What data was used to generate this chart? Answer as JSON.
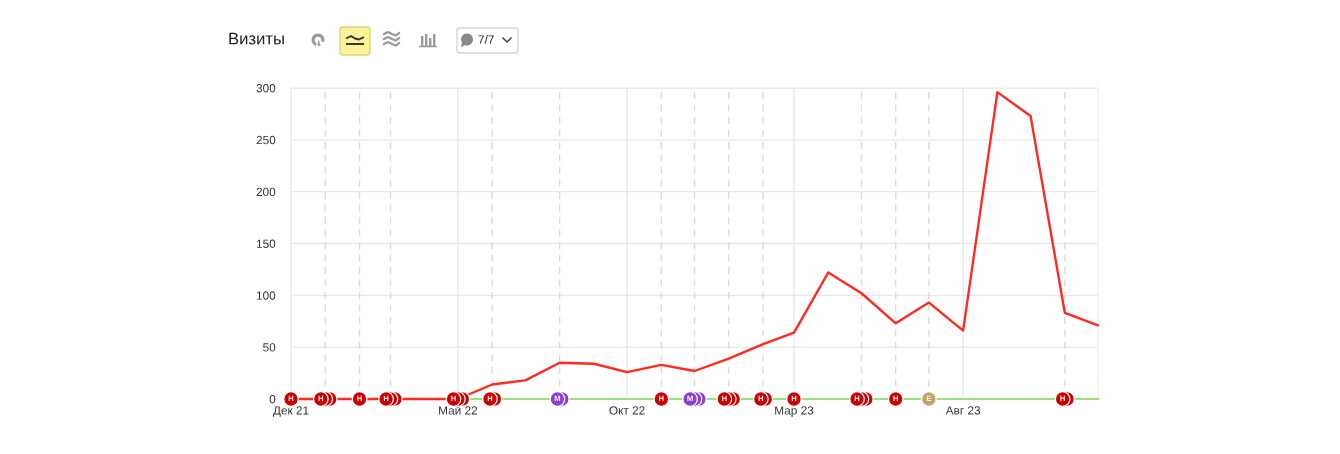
{
  "chart_data": {
    "type": "line",
    "title": "Визиты",
    "annotations": [
      "7/7"
    ],
    "x": [
      "2021-12",
      "2022-01",
      "2022-02",
      "2022-03",
      "2022-04",
      "2022-05",
      "2022-06",
      "2022-07",
      "2022-08",
      "2022-09",
      "2022-10",
      "2022-11",
      "2022-12",
      "2023-01",
      "2023-02",
      "2023-03",
      "2023-04",
      "2023-05",
      "2023-06",
      "2023-07",
      "2023-08",
      "2023-09",
      "2023-10",
      "2023-11",
      "2023-12"
    ],
    "series": [
      {
        "color": "#ff2a1f",
        "values": [
          0,
          0,
          0,
          0,
          0,
          0,
          14,
          18,
          35,
          34,
          26,
          33,
          27,
          39,
          53,
          64,
          122,
          102,
          73,
          93,
          66,
          296,
          273,
          83,
          71
        ]
      },
      {
        "type": "scatter",
        "marker": "circle",
        "x": [
          "2021-12-01",
          "2021-12-28",
          "2022-01-01",
          "2022-01-05",
          "2022-02-01",
          "2022-02-25",
          "2022-03-01",
          "2022-03-05",
          "2022-04-27",
          "2022-05-01",
          "2022-05-05",
          "2022-05-30",
          "2022-06-03",
          "2022-07-30",
          "2022-08-03",
          "2022-11-01",
          "2022-11-27",
          "2022-12-01",
          "2022-12-05",
          "2022-12-28",
          "2023-01-01",
          "2023-01-05",
          "2023-01-30",
          "2023-02-03",
          "2023-03-01",
          "2023-04-27",
          "2023-05-01",
          "2023-05-05",
          "2023-06-01",
          "2023-07-01",
          "2023-10-30",
          "2023-11-03"
        ],
        "values": [
          0,
          0,
          0,
          0,
          0,
          0,
          0,
          0,
          0,
          0,
          0,
          0,
          0,
          0,
          0,
          0,
          0,
          0,
          0,
          0,
          0,
          0,
          0,
          0,
          0,
          0,
          0,
          0,
          0,
          0,
          0,
          0
        ],
        "colors": [
          "#cc0000",
          "#cc0000",
          "#cc0000",
          "#cc0000",
          "#cc0000",
          "#cc0000",
          "#cc0000",
          "#cc0000",
          "#cc0000",
          "#cc0000",
          "#cc0000",
          "#cc0000",
          "#cc0000",
          "#8b3fd0",
          "#8b3fd0",
          "#cc0000",
          "#8b3fd0",
          "#8b3fd0",
          "#8b3fd0",
          "#cc0000",
          "#cc0000",
          "#cc0000",
          "#cc0000",
          "#cc0000",
          "#cc0000",
          "#cc0000",
          "#cc0000",
          "#cc0000",
          "#cc0000",
          "#c8a06e",
          "#cc0000",
          "#cc0000"
        ],
        "value_labels": [
          "Н",
          "Н",
          null,
          null,
          "Н",
          "Н",
          null,
          null,
          "Н",
          null,
          null,
          "Н",
          null,
          "М",
          null,
          "Н",
          "М",
          null,
          null,
          "Н",
          null,
          null,
          "Н",
          null,
          "Н",
          "Н",
          null,
          null,
          "Н",
          "Е",
          "Н",
          null
        ]
      }
    ],
    "xlim": [
      "2021-12",
      "2023-12"
    ],
    "xticks": [
      {
        "value": "2021-12",
        "label": "Дек 21"
      },
      {
        "value": "2022-05",
        "label": "Май 22"
      },
      {
        "value": "2022-10",
        "label": "Окт 22"
      },
      {
        "value": "2023-03",
        "label": "Мар 23"
      },
      {
        "value": "2023-08",
        "label": "Авг 23"
      }
    ],
    "ylim": [
      0,
      300
    ],
    "yticks": [
      0,
      50,
      100,
      150,
      200,
      250,
      300
    ],
    "grid": true,
    "ref_lines": [
      {
        "axis": "x",
        "value": "2022-01",
        "line_style": "dashed",
        "color": "#dcdcdc"
      },
      {
        "axis": "x",
        "value": "2022-02",
        "line_style": "dashed",
        "color": "#dcdcdc"
      },
      {
        "axis": "x",
        "value": "2022-03",
        "line_style": "dashed",
        "color": "#dcdcdc"
      },
      {
        "axis": "x",
        "value": "2022-06",
        "line_style": "dashed",
        "color": "#dcdcdc"
      },
      {
        "axis": "x",
        "value": "2022-08",
        "line_style": "dashed",
        "color": "#dcdcdc"
      },
      {
        "axis": "x",
        "value": "2022-11",
        "line_style": "dashed",
        "color": "#dcdcdc"
      },
      {
        "axis": "x",
        "value": "2022-12",
        "line_style": "dashed",
        "color": "#dcdcdc"
      },
      {
        "axis": "x",
        "value": "2023-01",
        "line_style": "dashed",
        "color": "#dcdcdc"
      },
      {
        "axis": "x",
        "value": "2023-02",
        "line_style": "dashed",
        "color": "#dcdcdc"
      },
      {
        "axis": "x",
        "value": "2023-05",
        "line_style": "dashed",
        "color": "#dcdcdc"
      },
      {
        "axis": "x",
        "value": "2023-06",
        "line_style": "dashed",
        "color": "#dcdcdc"
      },
      {
        "axis": "x",
        "value": "2023-07",
        "line_style": "dashed",
        "color": "#dcdcdc"
      },
      {
        "axis": "x",
        "value": "2023-11",
        "line_style": "dashed",
        "color": "#dcdcdc"
      }
    ]
  }
}
